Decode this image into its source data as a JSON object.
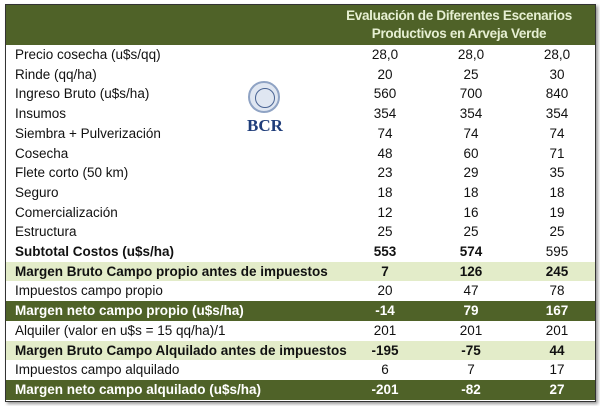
{
  "header": {
    "title_line1": "Evaluación de Diferentes Escenarios",
    "title_line2": "Productivos en Arveja Verde"
  },
  "logo": {
    "text": "BCR"
  },
  "colors": {
    "dark_green": "#4f6228",
    "light_green": "#e3ecc9"
  },
  "rows": [
    {
      "label": "Precio cosecha (u$s/qq)",
      "values": [
        "28,0",
        "28,0",
        "28,0"
      ],
      "style": "normal"
    },
    {
      "label": "Rinde (qq/ha)",
      "values": [
        "20",
        "25",
        "30"
      ],
      "style": "normal"
    },
    {
      "label": "Ingreso Bruto (u$s/ha)",
      "values": [
        "560",
        "700",
        "840"
      ],
      "style": "normal"
    },
    {
      "label": "Insumos",
      "values": [
        "354",
        "354",
        "354"
      ],
      "style": "normal"
    },
    {
      "label": "Siembra + Pulverización",
      "values": [
        "74",
        "74",
        "74"
      ],
      "style": "normal"
    },
    {
      "label": "Cosecha",
      "values": [
        "48",
        "60",
        "71"
      ],
      "style": "normal"
    },
    {
      "label": "Flete corto  (50 km)",
      "values": [
        "23",
        "29",
        "35"
      ],
      "style": "normal"
    },
    {
      "label": "Seguro",
      "values": [
        "18",
        "18",
        "18"
      ],
      "style": "normal"
    },
    {
      "label": "Comercialización",
      "values": [
        "12",
        "16",
        "19"
      ],
      "style": "normal"
    },
    {
      "label": "Estructura",
      "values": [
        "25",
        "25",
        "25"
      ],
      "style": "normal"
    },
    {
      "label": "Subtotal Costos (u$s/ha)",
      "values": [
        "553",
        "574",
        "595"
      ],
      "style": "bold"
    },
    {
      "label": "Margen Bruto Campo propio antes de impuestos",
      "values": [
        "7",
        "126",
        "245"
      ],
      "style": "light"
    },
    {
      "label": "Impuestos  campo propio",
      "values": [
        "20",
        "47",
        "78"
      ],
      "style": "normal"
    },
    {
      "label": "Margen neto campo propio (u$s/ha)",
      "values": [
        "-14",
        "79",
        "167"
      ],
      "style": "dark"
    },
    {
      "label": "Alquiler (valor en u$s = 15 qq/ha)/1",
      "values": [
        "201",
        "201",
        "201"
      ],
      "style": "normal"
    },
    {
      "label": "Margen Bruto Campo Alquilado antes de impuestos",
      "values": [
        "-195",
        "-75",
        "44"
      ],
      "style": "light"
    },
    {
      "label": "Impuestos campo alquilado",
      "values": [
        "6",
        "7",
        "17"
      ],
      "style": "normal"
    },
    {
      "label": "Margen neto campo alquilado (u$s/ha)",
      "values": [
        "-201",
        "-82",
        "27"
      ],
      "style": "dark"
    }
  ]
}
